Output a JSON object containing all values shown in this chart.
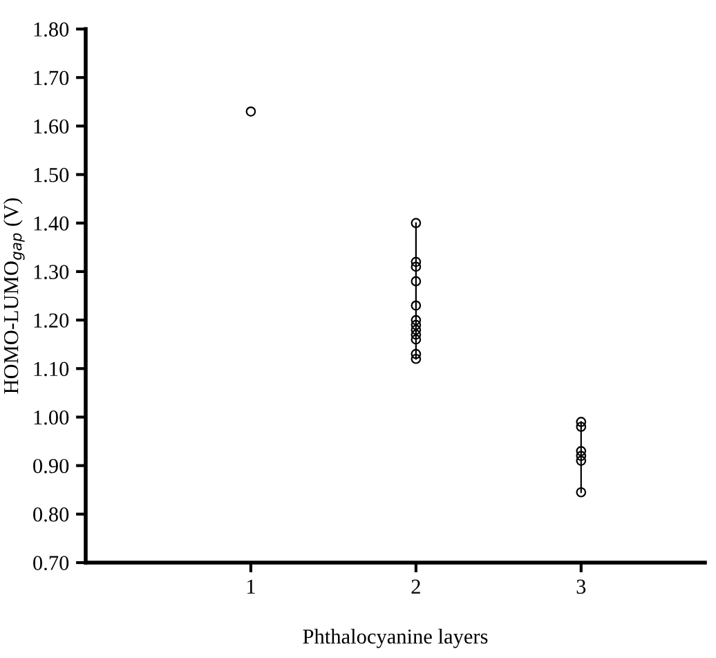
{
  "chart_data": {
    "type": "line",
    "xlabel": "Phthalocyanine layers",
    "ylabel": "HOMO-LUMO$_{gap}$ (V)",
    "marker": "circle",
    "line_style": "solid",
    "grid": false,
    "legend": false,
    "xlim": [
      0,
      3.75
    ],
    "xticks": [
      1,
      2,
      3
    ],
    "ylim": [
      0.7,
      1.8
    ],
    "yticks": [
      {
        "value": 0.7,
        "label": "0.70"
      },
      {
        "value": 0.8,
        "label": "0.80"
      },
      {
        "value": 0.9,
        "label": "0.90"
      },
      {
        "value": 1.0,
        "label": "1.00"
      },
      {
        "value": 1.1,
        "label": "1.10"
      },
      {
        "value": 1.2,
        "label": "1.20"
      },
      {
        "value": 1.3,
        "label": "1.30"
      },
      {
        "value": 1.4,
        "label": "1.40"
      },
      {
        "value": 1.5,
        "label": "1.50"
      },
      {
        "value": 1.6,
        "label": "1.60"
      },
      {
        "value": 1.7,
        "label": "1.70"
      },
      {
        "value": 1.8,
        "label": "1.80"
      }
    ],
    "series": [
      {
        "color": "#000000",
        "x": [
          1
        ],
        "values": [
          1.63
        ]
      },
      {
        "color": "#000000",
        "x": [
          2,
          2,
          2,
          2,
          2,
          2,
          2,
          2,
          2,
          2,
          2,
          2
        ],
        "values": [
          1.4,
          1.32,
          1.31,
          1.28,
          1.23,
          1.2,
          1.19,
          1.18,
          1.17,
          1.16,
          1.13,
          1.12
        ]
      },
      {
        "color": "#000000",
        "x": [
          3,
          3,
          3,
          3,
          3,
          3
        ],
        "values": [
          0.99,
          0.98,
          0.93,
          0.92,
          0.91,
          0.845
        ]
      }
    ]
  }
}
